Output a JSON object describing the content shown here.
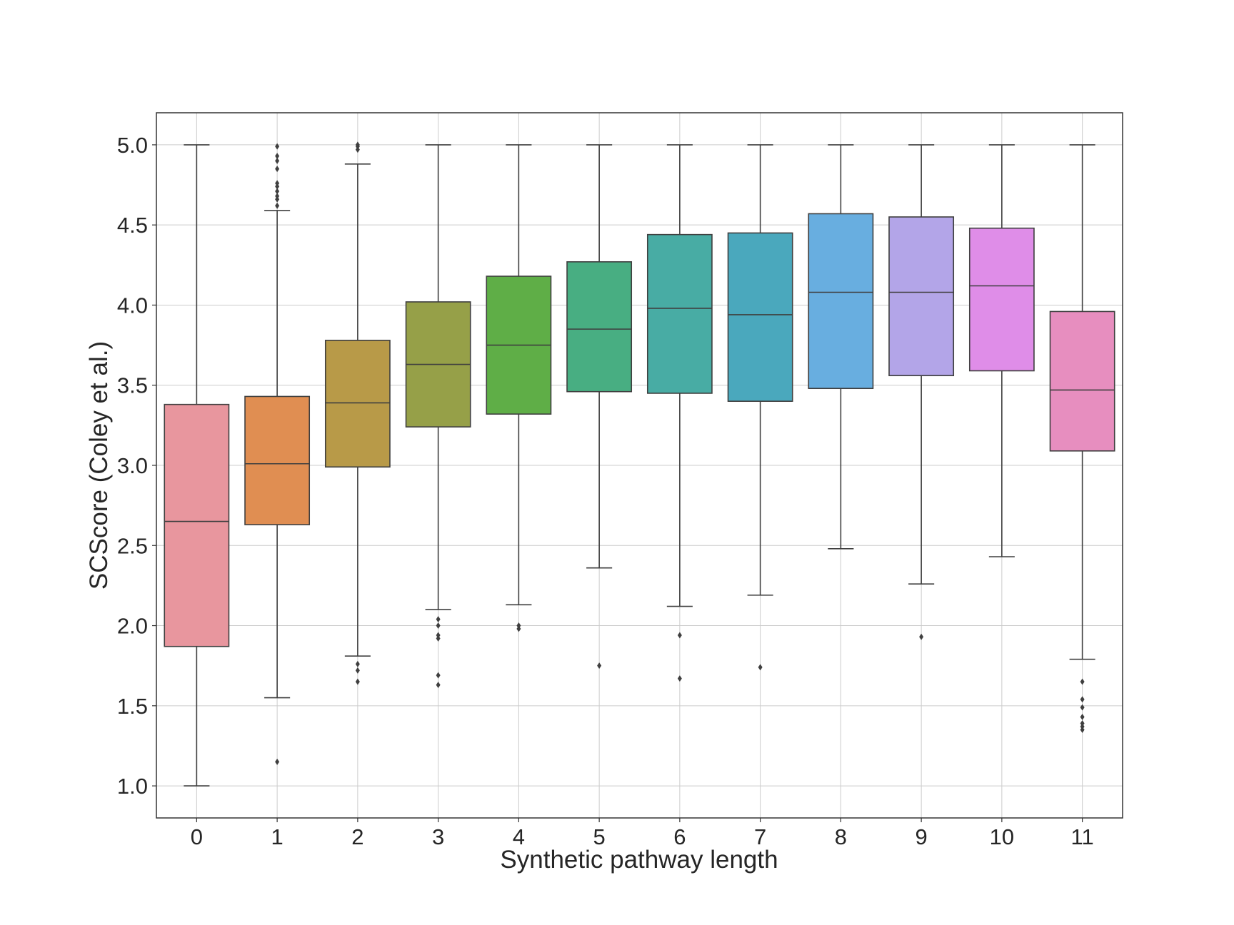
{
  "chart_data": {
    "type": "boxplot",
    "title": "",
    "xlabel": "Synthetic pathway length",
    "ylabel": "SCScore (Coley et al.)",
    "ylim": [
      0.8,
      5.2
    ],
    "yticks": [
      "1.0",
      "1.5",
      "2.0",
      "2.5",
      "3.0",
      "3.5",
      "4.0",
      "4.5",
      "5.0"
    ],
    "grid": true,
    "categories": [
      "0",
      "1",
      "2",
      "3",
      "4",
      "5",
      "6",
      "7",
      "8",
      "9",
      "10",
      "11"
    ],
    "colors": [
      "#e8969e",
      "#e08e52",
      "#b89a48",
      "#96a048",
      "#5fae47",
      "#48ae82",
      "#48aca4",
      "#4aa8bd",
      "#68aee0",
      "#b3a5e8",
      "#df8de8",
      "#e78ebf"
    ],
    "boxes": [
      {
        "category": "0",
        "whisker_low": 1.0,
        "q1": 1.87,
        "median": 2.65,
        "q3": 3.38,
        "whisker_high": 5.0,
        "outliers": []
      },
      {
        "category": "1",
        "whisker_low": 1.55,
        "q1": 2.63,
        "median": 3.01,
        "q3": 3.43,
        "whisker_high": 4.59,
        "outliers": [
          1.15,
          4.62,
          4.66,
          4.68,
          4.71,
          4.74,
          4.76,
          4.85,
          4.9,
          4.93,
          4.99
        ]
      },
      {
        "category": "2",
        "whisker_low": 1.81,
        "q1": 2.99,
        "median": 3.39,
        "q3": 3.78,
        "whisker_high": 4.88,
        "outliers": [
          1.65,
          1.72,
          1.76,
          4.97,
          4.99,
          5.0
        ]
      },
      {
        "category": "3",
        "whisker_low": 2.1,
        "q1": 3.24,
        "median": 3.63,
        "q3": 4.02,
        "whisker_high": 5.0,
        "outliers": [
          1.63,
          1.69,
          1.92,
          1.94,
          2.0,
          2.04
        ]
      },
      {
        "category": "4",
        "whisker_low": 2.13,
        "q1": 3.32,
        "median": 3.75,
        "q3": 4.18,
        "whisker_high": 5.0,
        "outliers": [
          1.98,
          2.0
        ]
      },
      {
        "category": "5",
        "whisker_low": 2.36,
        "q1": 3.46,
        "median": 3.85,
        "q3": 4.27,
        "whisker_high": 5.0,
        "outliers": [
          1.75
        ]
      },
      {
        "category": "6",
        "whisker_low": 2.12,
        "q1": 3.45,
        "median": 3.98,
        "q3": 4.44,
        "whisker_high": 5.0,
        "outliers": [
          1.67,
          1.94
        ]
      },
      {
        "category": "7",
        "whisker_low": 2.19,
        "q1": 3.4,
        "median": 3.94,
        "q3": 4.45,
        "whisker_high": 5.0,
        "outliers": [
          1.74
        ]
      },
      {
        "category": "8",
        "whisker_low": 2.48,
        "q1": 3.48,
        "median": 4.08,
        "q3": 4.57,
        "whisker_high": 5.0,
        "outliers": []
      },
      {
        "category": "9",
        "whisker_low": 2.26,
        "q1": 3.56,
        "median": 4.08,
        "q3": 4.55,
        "whisker_high": 5.0,
        "outliers": [
          1.93
        ]
      },
      {
        "category": "10",
        "whisker_low": 2.43,
        "q1": 3.59,
        "median": 4.12,
        "q3": 4.48,
        "whisker_high": 5.0,
        "outliers": []
      },
      {
        "category": "11",
        "whisker_low": 1.79,
        "q1": 3.09,
        "median": 3.47,
        "q3": 3.96,
        "whisker_high": 5.0,
        "outliers": [
          1.35,
          1.37,
          1.39,
          1.43,
          1.49,
          1.54,
          1.65
        ]
      }
    ]
  }
}
